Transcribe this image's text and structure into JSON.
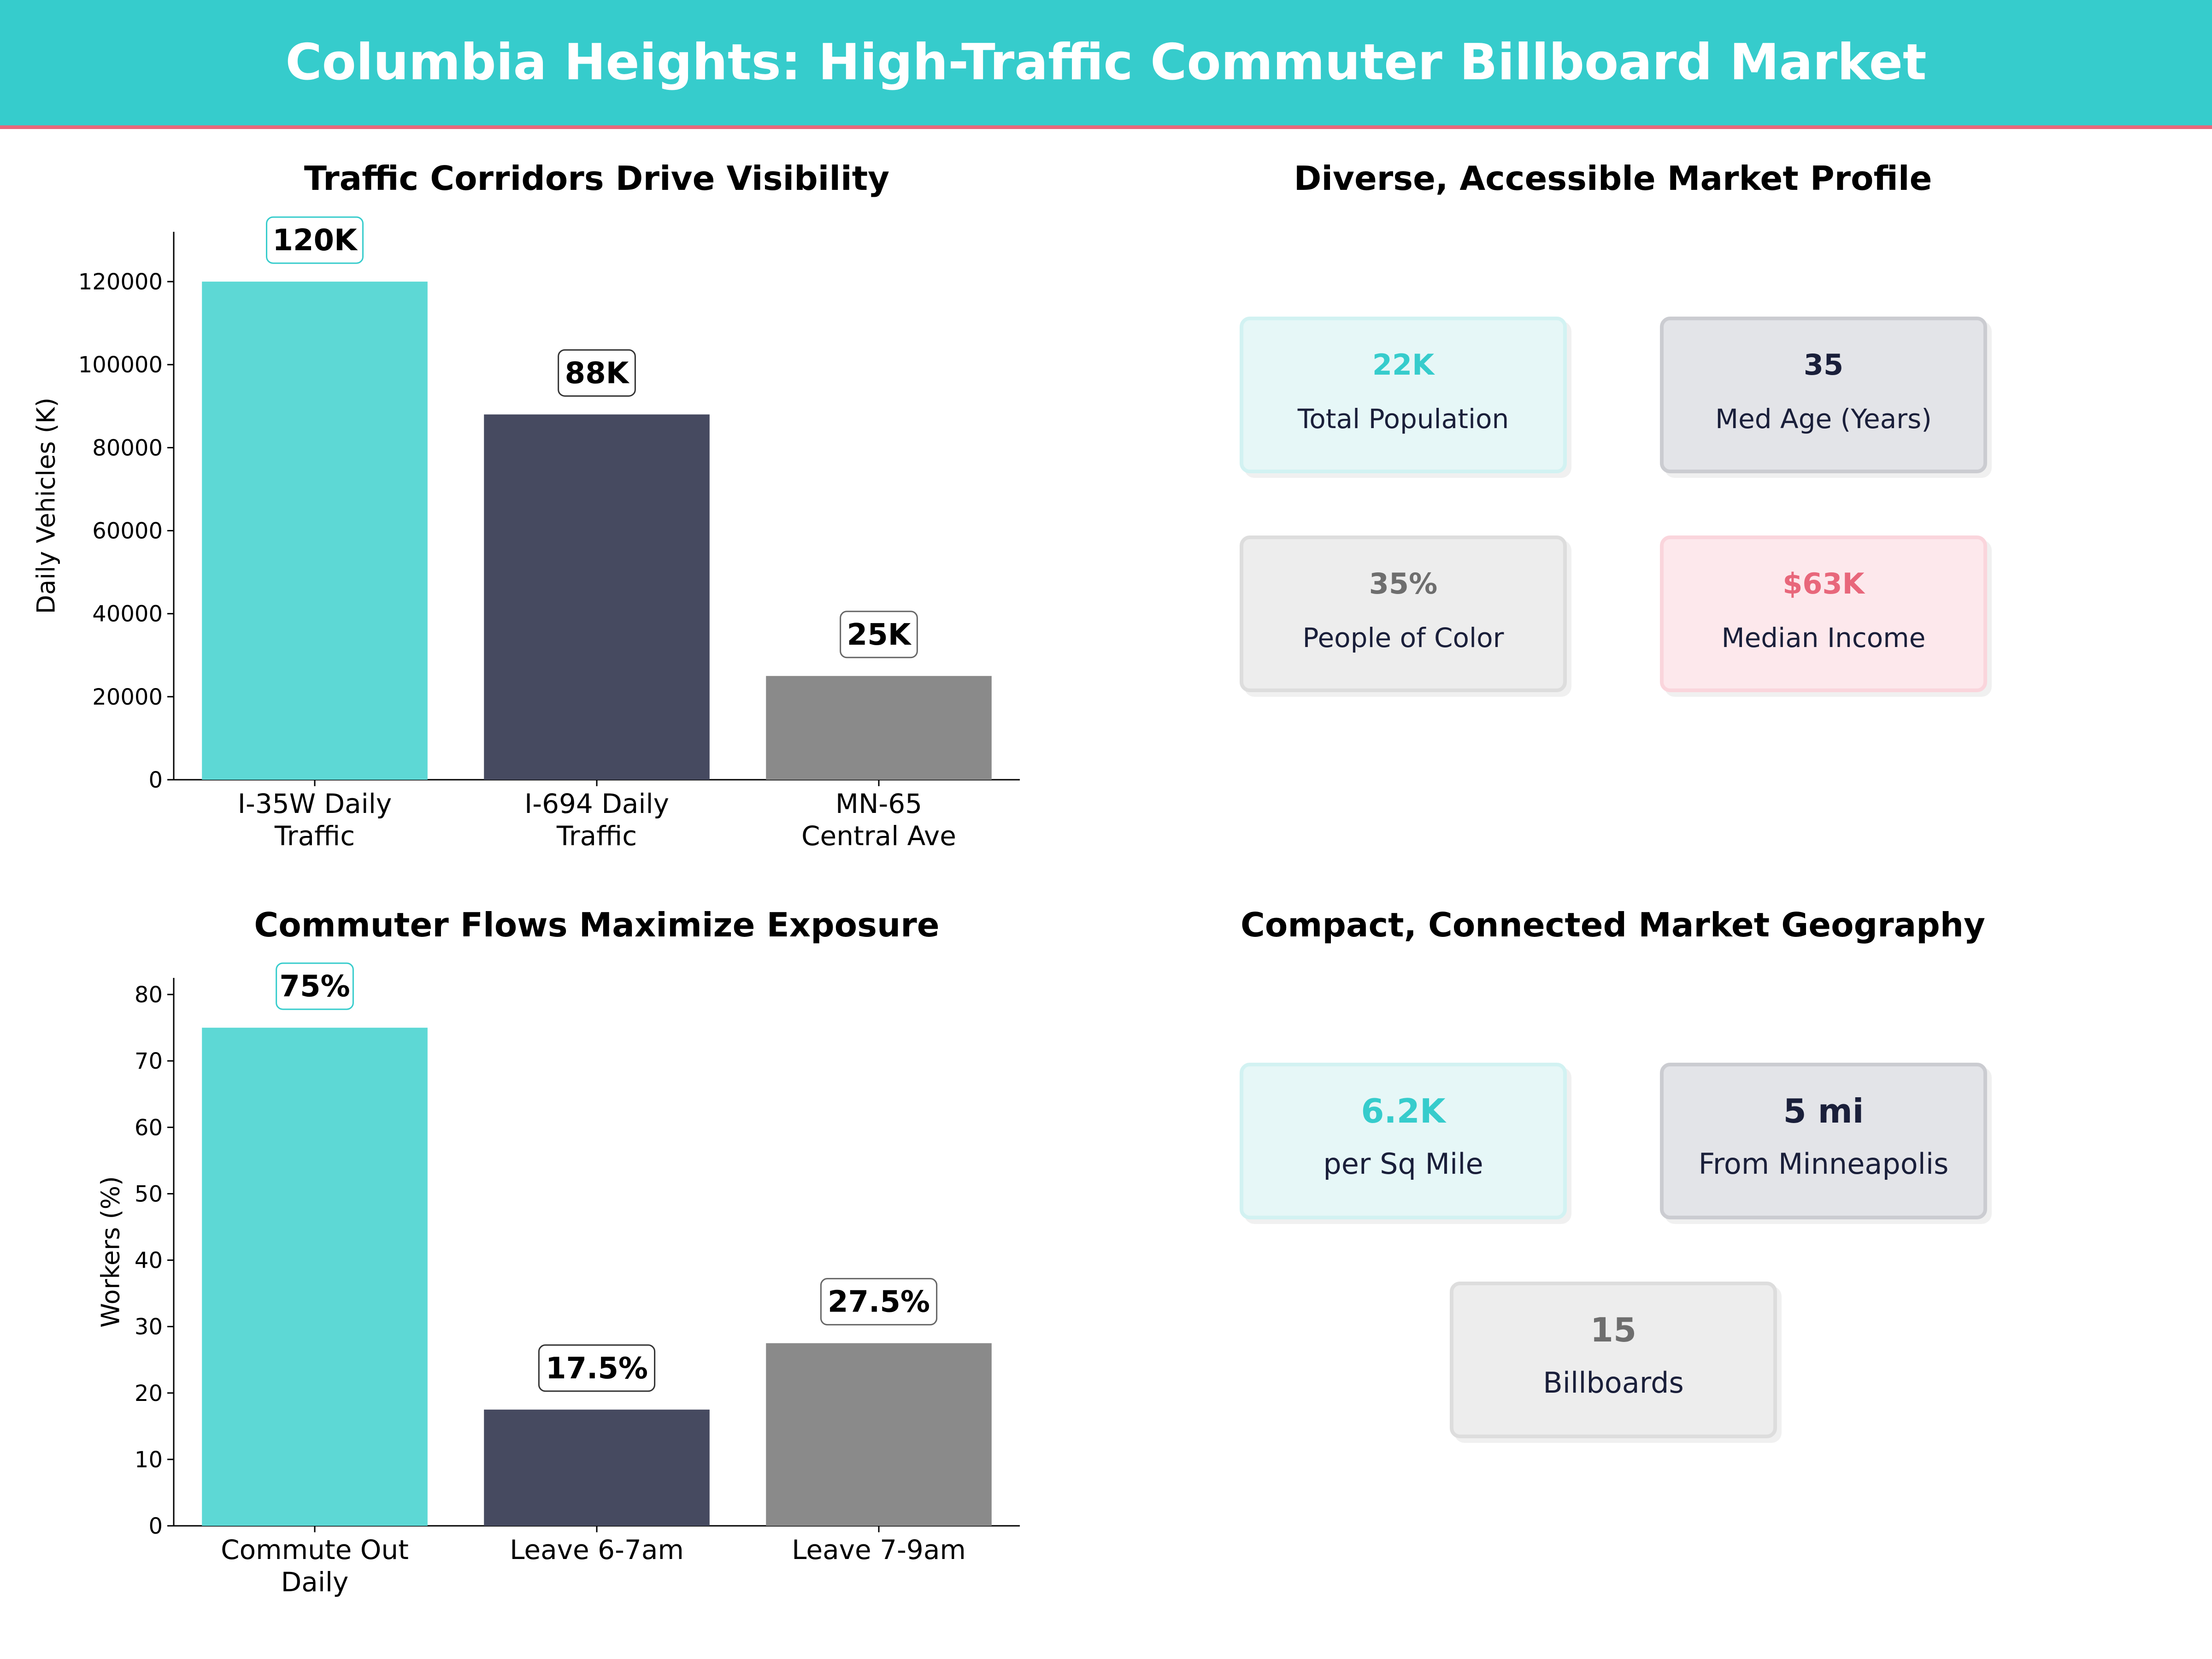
{
  "header": {
    "title": "Columbia Heights: High-Traffic Commuter Billboard Market"
  },
  "panels": {
    "traffic": {
      "title": "Traffic Corridors Drive Visibility"
    },
    "profile": {
      "title": "Diverse, Accessible Market Profile"
    },
    "commute": {
      "title": "Commuter Flows Maximize Exposure"
    },
    "geography": {
      "title": "Compact, Connected Market Geography"
    }
  },
  "colors": {
    "accent": "#36CCCC",
    "bar1": "#5DD8D5",
    "bar2": "#464A60",
    "bar3": "#8A8A8A",
    "pink": "#E8677B",
    "navy": "#1a1f3a",
    "gray": "#6e6e6e"
  },
  "profile_cards": [
    {
      "value": "22K",
      "label": "Total Population"
    },
    {
      "value": "35",
      "label": "Med Age (Years)"
    },
    {
      "value": "35%",
      "label": "People of Color"
    },
    {
      "value": "$63K",
      "label": "Median Income"
    }
  ],
  "geo_cards": [
    {
      "value": "6.2K",
      "label": "per Sq Mile"
    },
    {
      "value": "5 mi",
      "label": "From Minneapolis"
    },
    {
      "value": "15",
      "label": "Billboards"
    }
  ],
  "chart_data": [
    {
      "type": "bar",
      "title": "Traffic Corridors Drive Visibility",
      "categories": [
        [
          "I-35W Daily",
          "Traffic"
        ],
        [
          "I-694 Daily",
          "Traffic"
        ],
        [
          "MN-65",
          "Central Ave"
        ]
      ],
      "values": [
        120000,
        88000,
        25000
      ],
      "data_labels": [
        "120K",
        "88K",
        "25K"
      ],
      "xlabel": "",
      "ylabel": "Daily Vehicles (K)",
      "ylim": [
        0,
        132000
      ],
      "yticks": [
        0,
        20000,
        40000,
        60000,
        80000,
        100000,
        120000
      ],
      "grid": false
    },
    {
      "type": "bar",
      "title": "Commuter Flows Maximize Exposure",
      "categories": [
        [
          "Commute Out",
          "Daily"
        ],
        [
          "Leave 6-7am"
        ],
        [
          "Leave 7-9am"
        ]
      ],
      "values": [
        75,
        17.5,
        27.5
      ],
      "data_labels": [
        "75%",
        "17.5%",
        "27.5%"
      ],
      "xlabel": "",
      "ylabel": "Workers (%)",
      "ylim": [
        0,
        82.5
      ],
      "yticks": [
        0,
        10,
        20,
        30,
        40,
        50,
        60,
        70,
        80
      ],
      "grid": false
    }
  ]
}
